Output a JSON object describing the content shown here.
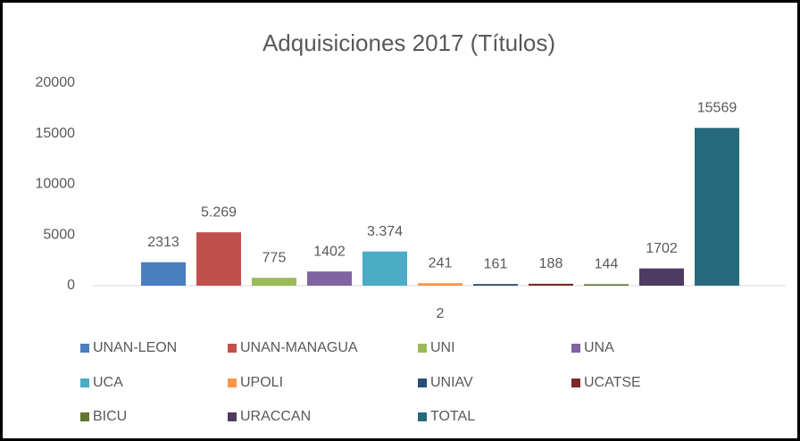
{
  "chart_data": {
    "type": "bar",
    "title": "Adquisiciones 2017 (Títulos)",
    "categories": [
      "2"
    ],
    "series": [
      {
        "name": "UNAN-LEON",
        "color": "#4a7ebf",
        "values": [
          2313
        ]
      },
      {
        "name": "UNAN-MANAGUA",
        "color": "#c0504d",
        "values": [
          5269
        ],
        "value_labels": [
          "5.269"
        ]
      },
      {
        "name": "UNI",
        "color": "#9bbb59",
        "values": [
          775
        ]
      },
      {
        "name": "UNA",
        "color": "#8064a2",
        "values": [
          1402
        ]
      },
      {
        "name": "UCA",
        "color": "#4bacc6",
        "values": [
          3374
        ],
        "value_labels": [
          "3.374"
        ]
      },
      {
        "name": "UPOLI",
        "color": "#f79646",
        "values": [
          241
        ]
      },
      {
        "name": "UNIAV",
        "color": "#2c4d75",
        "values": [
          161
        ]
      },
      {
        "name": "UCATSE",
        "color": "#772c2a",
        "values": [
          188
        ]
      },
      {
        "name": "BICU",
        "color": "#5f7530",
        "values": [
          144
        ]
      },
      {
        "name": "URACCAN",
        "color": "#4d3b62",
        "values": [
          1702
        ]
      },
      {
        "name": "TOTAL",
        "color": "#276a7c",
        "values": [
          15569
        ]
      }
    ],
    "ylim": [
      0,
      20000
    ],
    "yticks": [
      0,
      5000,
      10000,
      15000,
      20000
    ],
    "grid": false,
    "legend": "bottom"
  }
}
